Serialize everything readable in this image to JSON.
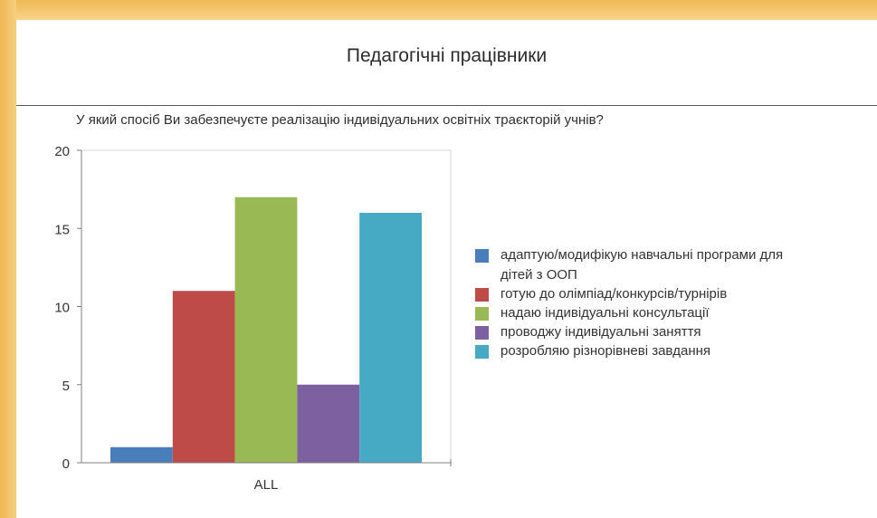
{
  "page": {
    "section_title": "Педагогічні працівники",
    "question": "У який спосіб Ви забезпечуєте реалізацію індивідуальних освітніх траєкторій учнів?"
  },
  "chart_data": {
    "type": "bar",
    "categories": [
      "ALL"
    ],
    "series": [
      {
        "name": "адаптую/модифікую навчальні програми для дітей з ООП",
        "values": [
          1
        ],
        "color": "#4a7ebb"
      },
      {
        "name": "готую до олімпіад/конкурсів/турнірів",
        "values": [
          11
        ],
        "color": "#be4b48"
      },
      {
        "name": "надаю індивідуальні консультації",
        "values": [
          17
        ],
        "color": "#98b954"
      },
      {
        "name": "проводжу індивідуальні заняття",
        "values": [
          5
        ],
        "color": "#7d60a0"
      },
      {
        "name": "розробляю різнорівневі завдання",
        "values": [
          16
        ],
        "color": "#46aac5"
      }
    ],
    "title": "У який спосіб Ви забезпечуєте реалізацію індивідуальних освітніх траєкторій учнів?",
    "xlabel": "",
    "ylabel": "",
    "ylim": [
      0,
      20
    ],
    "yticks": [
      0,
      5,
      10,
      15,
      20
    ],
    "grid": false,
    "legend_position": "right"
  }
}
